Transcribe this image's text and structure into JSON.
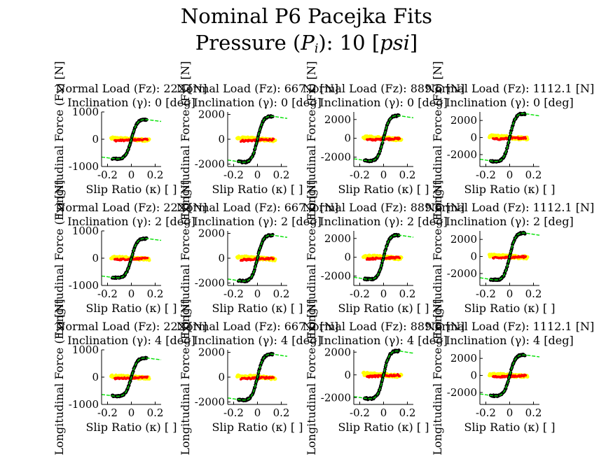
{
  "figure": {
    "title_line1": "Nominal P6 Pacejka Fits",
    "title_line2": "Pressure (Pi): 10 [psi]",
    "title_symbol": "P",
    "title_subscript": "i",
    "title_unit": "psi"
  },
  "colors": {
    "raw_data": "#000000",
    "fit": "#00e000",
    "data_red": "#ff0000",
    "data_yellow": "#ffff00",
    "axis": "#000000",
    "background": "#ffffff"
  },
  "chart_data": [
    {
      "type": "scatter",
      "row": 0,
      "col": 0,
      "title_load": "Normal Load (Fz): 222 [N]",
      "title_incl": "Inclination (γ): 0 [deg]",
      "load_value": "222",
      "incl_value": "0",
      "xlabel": "Slip Ratio (κ) [ ]",
      "ylabel": "Longitudinal Force (Fx) [N]",
      "xlim": [
        -0.25,
        0.25
      ],
      "ylim": [
        -1000,
        1000
      ],
      "xticks": [
        -0.2,
        0,
        0.2
      ],
      "yticks": [
        -1000,
        0,
        1000
      ],
      "peak": 720,
      "series": [
        {
          "name": "measured",
          "color": "#000000"
        },
        {
          "name": "fit",
          "color": "#00e000"
        },
        {
          "name": "lateral-a",
          "color": "#ff0000"
        },
        {
          "name": "lateral-b",
          "color": "#ffff00"
        }
      ]
    },
    {
      "type": "scatter",
      "row": 0,
      "col": 1,
      "title_load": "Normal Load (Fz): 667.2 [N]",
      "title_incl": "Inclination (γ): 0 [deg]",
      "load_value": "667.2",
      "incl_value": "0",
      "xlabel": "Slip Ratio (κ) [ ]",
      "ylabel": "Longitudinal Force (Fx) [N]",
      "xlim": [
        -0.25,
        0.25
      ],
      "ylim": [
        -2200,
        2200
      ],
      "xticks": [
        -0.2,
        0,
        0.2
      ],
      "yticks": [
        -2000,
        0,
        2000
      ],
      "peak": 1850,
      "series": [
        {
          "name": "measured",
          "color": "#000000"
        },
        {
          "name": "fit",
          "color": "#00e000"
        },
        {
          "name": "lateral-a",
          "color": "#ff0000"
        },
        {
          "name": "lateral-b",
          "color": "#ffff00"
        }
      ]
    },
    {
      "type": "scatter",
      "row": 0,
      "col": 2,
      "title_load": "Normal Load (Fz): 889.6 [N]",
      "title_incl": "Inclination (γ): 0 [deg]",
      "load_value": "889.6",
      "incl_value": "0",
      "xlabel": "Slip Ratio (κ) [ ]",
      "ylabel": "Longitudinal Force (Fx) [N]",
      "xlim": [
        -0.25,
        0.25
      ],
      "ylim": [
        -3000,
        2800
      ],
      "xticks": [
        -0.2,
        0,
        0.2
      ],
      "yticks": [
        -2000,
        0,
        2000
      ],
      "peak": 2400,
      "series": [
        {
          "name": "measured",
          "color": "#000000"
        },
        {
          "name": "fit",
          "color": "#00e000"
        },
        {
          "name": "lateral-a",
          "color": "#ff0000"
        },
        {
          "name": "lateral-b",
          "color": "#ffff00"
        }
      ]
    },
    {
      "type": "scatter",
      "row": 0,
      "col": 3,
      "title_load": "Normal Load (Fz): 1112.1 [N]",
      "title_incl": "Inclination (γ): 0 [deg]",
      "load_value": "1112.1",
      "incl_value": "0",
      "xlabel": "Slip Ratio (κ) [ ]",
      "ylabel": "Longitudinal Force (Fx) [N]",
      "xlim": [
        -0.25,
        0.25
      ],
      "ylim": [
        -3400,
        3000
      ],
      "xticks": [
        -0.2,
        0,
        0.2
      ],
      "yticks": [
        -2000,
        0,
        2000
      ],
      "peak": 2800,
      "series": [
        {
          "name": "measured",
          "color": "#000000"
        },
        {
          "name": "fit",
          "color": "#00e000"
        },
        {
          "name": "lateral-a",
          "color": "#ff0000"
        },
        {
          "name": "lateral-b",
          "color": "#ffff00"
        }
      ]
    },
    {
      "type": "scatter",
      "row": 1,
      "col": 0,
      "title_load": "Normal Load (Fz): 222 [N]",
      "title_incl": "Inclination (γ): 2 [deg]",
      "load_value": "222",
      "incl_value": "2",
      "xlabel": "Slip Ratio (κ) [ ]",
      "ylabel": "Longitudinal Force (Fx) [N]",
      "xlim": [
        -0.25,
        0.25
      ],
      "ylim": [
        -1000,
        1000
      ],
      "xticks": [
        -0.2,
        0,
        0.2
      ],
      "yticks": [
        -1000,
        0,
        1000
      ],
      "peak": 720,
      "series": [
        {
          "name": "measured",
          "color": "#000000"
        },
        {
          "name": "fit",
          "color": "#00e000"
        },
        {
          "name": "lateral-a",
          "color": "#ff0000"
        },
        {
          "name": "lateral-b",
          "color": "#ffff00"
        }
      ]
    },
    {
      "type": "scatter",
      "row": 1,
      "col": 1,
      "title_load": "Normal Load (Fz): 667.2 [N]",
      "title_incl": "Inclination (γ): 2 [deg]",
      "load_value": "667.2",
      "incl_value": "2",
      "xlabel": "Slip Ratio (κ) [ ]",
      "ylabel": "Longitudinal Force (Fx) [N]",
      "xlim": [
        -0.25,
        0.25
      ],
      "ylim": [
        -2200,
        2200
      ],
      "xticks": [
        -0.2,
        0,
        0.2
      ],
      "yticks": [
        -2000,
        0,
        2000
      ],
      "peak": 1850,
      "series": [
        {
          "name": "measured",
          "color": "#000000"
        },
        {
          "name": "fit",
          "color": "#00e000"
        },
        {
          "name": "lateral-a",
          "color": "#ff0000"
        },
        {
          "name": "lateral-b",
          "color": "#ffff00"
        }
      ]
    },
    {
      "type": "scatter",
      "row": 1,
      "col": 2,
      "title_load": "Normal Load (Fz): 889.6 [N]",
      "title_incl": "Inclination (γ): 2 [deg]",
      "load_value": "889.6",
      "incl_value": "2",
      "xlabel": "Slip Ratio (κ) [ ]",
      "ylabel": "Longitudinal Force (Fx) [N]",
      "xlim": [
        -0.25,
        0.25
      ],
      "ylim": [
        -3000,
        2800
      ],
      "xticks": [
        -0.2,
        0,
        0.2
      ],
      "yticks": [
        -2000,
        0,
        2000
      ],
      "peak": 2350,
      "series": [
        {
          "name": "measured",
          "color": "#000000"
        },
        {
          "name": "fit",
          "color": "#00e000"
        },
        {
          "name": "lateral-a",
          "color": "#ff0000"
        },
        {
          "name": "lateral-b",
          "color": "#ffff00"
        }
      ]
    },
    {
      "type": "scatter",
      "row": 1,
      "col": 3,
      "title_load": "Normal Load (Fz): 1112.1 [N]",
      "title_incl": "Inclination (γ): 2 [deg]",
      "load_value": "1112.1",
      "incl_value": "2",
      "xlabel": "Slip Ratio (κ) [ ]",
      "ylabel": "Longitudinal Force (Fx) [N]",
      "xlim": [
        -0.25,
        0.25
      ],
      "ylim": [
        -3400,
        3000
      ],
      "xticks": [
        -0.2,
        0,
        0.2
      ],
      "yticks": [
        -2000,
        0,
        2000
      ],
      "peak": 2750,
      "series": [
        {
          "name": "measured",
          "color": "#000000"
        },
        {
          "name": "fit",
          "color": "#00e000"
        },
        {
          "name": "lateral-a",
          "color": "#ff0000"
        },
        {
          "name": "lateral-b",
          "color": "#ffff00"
        }
      ]
    },
    {
      "type": "scatter",
      "row": 2,
      "col": 0,
      "title_load": "Normal Load (Fz): 222 [N]",
      "title_incl": "Inclination (γ): 4 [deg]",
      "load_value": "222",
      "incl_value": "4",
      "xlabel": "Slip Ratio (κ) [ ]",
      "ylabel": "Longitudinal Force (Fx) [N]",
      "xlim": [
        -0.25,
        0.25
      ],
      "ylim": [
        -1000,
        1000
      ],
      "xticks": [
        -0.2,
        0,
        0.2
      ],
      "yticks": [
        -1000,
        0,
        1000
      ],
      "peak": 700,
      "series": [
        {
          "name": "measured",
          "color": "#000000"
        },
        {
          "name": "fit",
          "color": "#00e000"
        },
        {
          "name": "lateral-a",
          "color": "#ff0000"
        },
        {
          "name": "lateral-b",
          "color": "#ffff00"
        }
      ]
    },
    {
      "type": "scatter",
      "row": 2,
      "col": 1,
      "title_load": "Normal Load (Fz): 667.2 [N]",
      "title_incl": "Inclination (γ): 4 [deg]",
      "load_value": "667.2",
      "incl_value": "4",
      "xlabel": "Slip Ratio (κ) [ ]",
      "ylabel": "Longitudinal Force (Fx) [N]",
      "xlim": [
        -0.25,
        0.25
      ],
      "ylim": [
        -2200,
        2200
      ],
      "xticks": [
        -0.2,
        0,
        0.2
      ],
      "yticks": [
        -2000,
        0,
        2000
      ],
      "peak": 1850,
      "series": [
        {
          "name": "measured",
          "color": "#000000"
        },
        {
          "name": "fit",
          "color": "#00e000"
        },
        {
          "name": "lateral-a",
          "color": "#ff0000"
        },
        {
          "name": "lateral-b",
          "color": "#ffff00"
        }
      ]
    },
    {
      "type": "scatter",
      "row": 2,
      "col": 2,
      "title_load": "Normal Load (Fz): 889.6 [N]",
      "title_incl": "Inclination (γ): 4 [deg]",
      "load_value": "889.6",
      "incl_value": "4",
      "xlabel": "Slip Ratio (κ) [ ]",
      "ylabel": "Longitudinal Force (Fx) [N]",
      "xlim": [
        -0.25,
        0.25
      ],
      "ylim": [
        -2600,
        2200
      ],
      "xticks": [
        -0.2,
        0,
        0.2
      ],
      "yticks": [
        -2000,
        0,
        2000
      ],
      "peak": 2100,
      "series": [
        {
          "name": "measured",
          "color": "#000000"
        },
        {
          "name": "fit",
          "color": "#00e000"
        },
        {
          "name": "lateral-a",
          "color": "#ff0000"
        },
        {
          "name": "lateral-b",
          "color": "#ffff00"
        }
      ]
    },
    {
      "type": "scatter",
      "row": 2,
      "col": 3,
      "title_load": "Normal Load (Fz): 1112.1 [N]",
      "title_incl": "Inclination (γ): 4 [deg]",
      "load_value": "1112.1",
      "incl_value": "4",
      "xlabel": "Slip Ratio (κ) [ ]",
      "ylabel": "Longitudinal Force (Fx) [N]",
      "xlim": [
        -0.25,
        0.25
      ],
      "ylim": [
        -3400,
        3000
      ],
      "xticks": [
        -0.2,
        0,
        0.2
      ],
      "yticks": [
        -2000,
        0,
        2000
      ],
      "peak": 2400,
      "series": [
        {
          "name": "measured",
          "color": "#000000"
        },
        {
          "name": "fit",
          "color": "#00e000"
        },
        {
          "name": "lateral-a",
          "color": "#ff0000"
        },
        {
          "name": "lateral-b",
          "color": "#ffff00"
        }
      ]
    }
  ]
}
